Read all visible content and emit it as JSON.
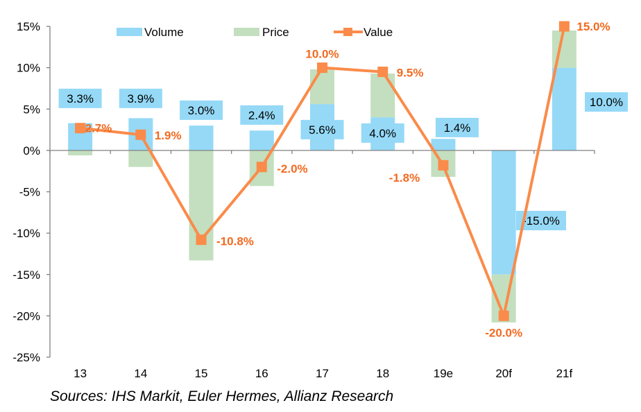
{
  "chart_data": {
    "type": "bar",
    "subtype": "stacked bar with line overlay",
    "title": "",
    "xlabel": "",
    "ylabel": "",
    "ylim": [
      -25,
      15
    ],
    "yticks": [
      15,
      10,
      5,
      0,
      -5,
      -10,
      -15,
      -20,
      -25
    ],
    "ytick_labels": [
      "15%",
      "10%",
      "5%",
      "0%",
      "-5%",
      "-10%",
      "-15%",
      "-20%",
      "-25%"
    ],
    "categories": [
      "13",
      "14",
      "15",
      "16",
      "17",
      "18",
      "19e",
      "20f",
      "21f"
    ],
    "series": [
      {
        "name": "Volume",
        "kind": "bar",
        "color": "#95d9f7",
        "values": [
          3.3,
          3.9,
          3.0,
          2.4,
          5.6,
          4.0,
          1.4,
          -15.0,
          10.0
        ],
        "labels": [
          "3.3%",
          "3.9%",
          "3.0%",
          "2.4%",
          "5.6%",
          "4.0%",
          "1.4%",
          "-15.0%",
          "10.0%"
        ]
      },
      {
        "name": "Price",
        "kind": "bar",
        "color": "#c3dfbf",
        "values": [
          -0.6,
          -2.0,
          -13.3,
          -4.3,
          4.2,
          5.3,
          -3.2,
          -5.8,
          4.5
        ]
      },
      {
        "name": "Value",
        "kind": "line",
        "color": "#fa8b4a",
        "values": [
          2.7,
          1.9,
          -10.8,
          -2.0,
          10.0,
          9.5,
          -1.8,
          -20.0,
          15.0
        ],
        "labels": [
          "2.7%",
          "1.9%",
          "-10.8%",
          "-2.0%",
          "10.0%",
          "9.5%",
          "-1.8%",
          "-20.0%",
          "15.0%"
        ]
      }
    ],
    "legend": {
      "position": "top",
      "entries": [
        "Volume",
        "Price",
        "Value"
      ]
    },
    "grid": false,
    "label_color": "#f26a21",
    "source": "Sources: IHS Markit, Euler Hermes, Allianz Research"
  }
}
